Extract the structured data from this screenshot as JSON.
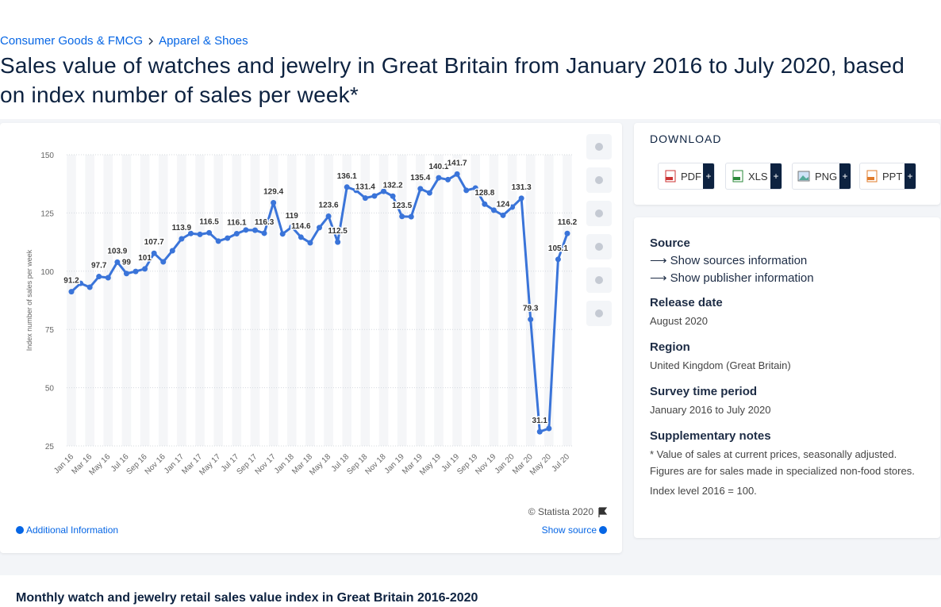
{
  "page": {
    "breadcrumb": [
      "Consumer Goods & FMCG",
      "Apparel & Shoes"
    ],
    "title": "Sales value of watches and jewelry in Great Britain from January 2016 to July 2020, based on index number of sales per week*",
    "download_heading": "DOWNLOAD",
    "formats": [
      "PDF",
      "XLS",
      "PNG",
      "PPT"
    ],
    "add_symbol": "+",
    "source_heading": "Source",
    "show_sources": "Show sources information",
    "show_publisher": "Show publisher information",
    "details": [
      {
        "label": "Release date",
        "value": "August 2020"
      },
      {
        "label": "Region",
        "value": "United Kingdom (Great Britain)"
      },
      {
        "label": "Survey time period",
        "value": "January 2016 to July 2020"
      }
    ],
    "notes_heading": "Supplementary notes",
    "notes": [
      "* Value of sales at current prices, seasonally adjusted. Figures are for sales made in specialized non-food stores.",
      "Index level 2016 = 100."
    ],
    "copyright": "© Statista 2020",
    "additional_info": "Additional Information",
    "show_source": "Show source",
    "next_heading": "Monthly watch and jewelry retail sales value index in Great Britain 2016-2020"
  },
  "chart_data": {
    "type": "line",
    "y_label": "Index number of sales per week",
    "color": "#3a74d9",
    "ylim": [
      25,
      150
    ],
    "yticks": [
      25,
      50,
      75,
      100,
      125,
      150
    ],
    "grid": true,
    "categories": [
      "Jan 16",
      null,
      "Mar 16",
      null,
      "May 16",
      null,
      "Jul 16",
      null,
      "Sep 16",
      null,
      "Nov 16",
      null,
      "Jan 17",
      null,
      "Mar 17",
      null,
      "May 17",
      null,
      "Jul 17",
      null,
      "Sep 17",
      null,
      "Nov 17",
      null,
      "Jan 18",
      null,
      "Mar 18",
      null,
      "May 18",
      null,
      "Jul 18",
      null,
      "Sep 18",
      null,
      "Nov 18",
      null,
      "Jan 19",
      null,
      "Mar 19",
      null,
      "May 19",
      null,
      "Jul 19",
      null,
      "Sep 19",
      null,
      "Nov 19",
      null,
      "Jan 20",
      null,
      "Mar 20",
      null,
      "May 20",
      null,
      "Jul 20"
    ],
    "values": [
      91.2,
      94.8,
      93.1,
      97.7,
      97.2,
      103.9,
      99,
      99.9,
      101,
      107.7,
      104,
      108.8,
      113.9,
      116.2,
      115.8,
      116.5,
      112.9,
      114.2,
      116.1,
      117.7,
      117.6,
      116.3,
      129.4,
      116,
      119,
      114.6,
      112.2,
      118.7,
      123.6,
      112.5,
      136.1,
      134.7,
      131.4,
      132.3,
      134.3,
      132.2,
      123.5,
      123.4,
      135.4,
      133.6,
      140.1,
      139.3,
      141.7,
      134.7,
      135.7,
      128.8,
      126.2,
      124,
      127.5,
      131.3,
      79.3,
      31.1,
      32.5,
      105.1,
      116.2
    ],
    "value_labels": [
      "91.2",
      null,
      null,
      "97.7",
      null,
      "103.9",
      "99",
      null,
      "101",
      "107.7",
      null,
      null,
      "113.9",
      null,
      null,
      "116.5",
      null,
      null,
      "116.1",
      null,
      null,
      "116.3",
      "129.4",
      null,
      "119",
      "114.6",
      null,
      null,
      "123.6",
      "112.5",
      "136.1",
      null,
      "131.4",
      null,
      null,
      "132.2",
      "123.5",
      null,
      "135.4",
      null,
      "140.1",
      null,
      "141.7",
      null,
      null,
      "128.8",
      null,
      "124",
      null,
      "131.3",
      "79.3",
      "31.1",
      null,
      "105.1",
      "116.2"
    ]
  }
}
